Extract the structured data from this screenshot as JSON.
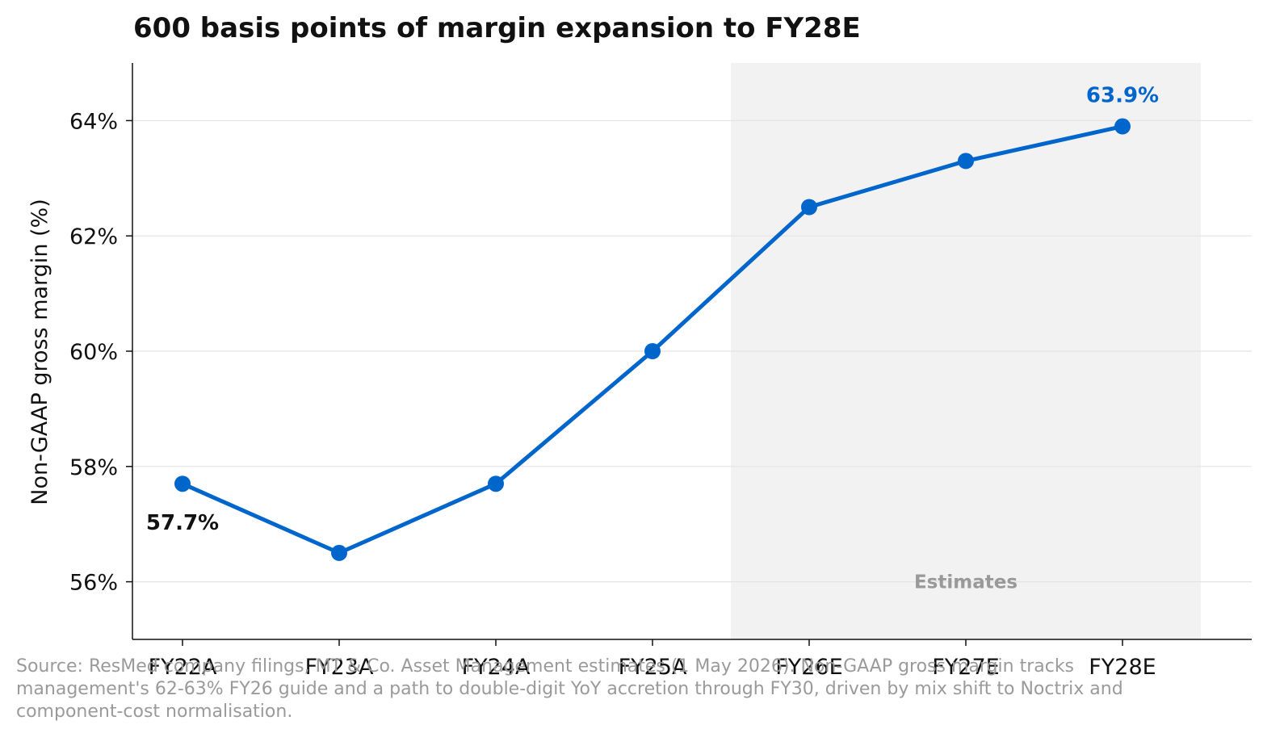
{
  "chart_data": {
    "type": "line",
    "title": "600 basis points of margin expansion to FY28E",
    "xlabel": "",
    "ylabel": "Non-GAAP gross margin (%)",
    "categories": [
      "FY22A",
      "FY23A",
      "FY24A",
      "FY25A",
      "FY26E",
      "FY27E",
      "FY28E"
    ],
    "series": [
      {
        "values": [
          57.7,
          56.5,
          57.7,
          60.0,
          62.5,
          63.3,
          63.9
        ]
      }
    ],
    "ylim": [
      55,
      65
    ],
    "yticks": [
      56,
      58,
      60,
      62,
      64
    ],
    "ytick_labels": [
      "56%",
      "58%",
      "60%",
      "62%",
      "64%"
    ],
    "grid": "horizontal",
    "line_color": "#0066cc",
    "shaded_region": {
      "from": "FY26E",
      "to": "FY28E",
      "label": "Estimates",
      "color": "#f2f2f2"
    },
    "annotations": [
      {
        "category": "FY22A",
        "text": "57.7%",
        "color": "#111111"
      },
      {
        "category": "FY28E",
        "text": "63.9%",
        "color": "#0066cc"
      }
    ]
  },
  "footnote": "Source: ResMed company filings, MT & Co. Asset Management estimates (1 May 2026). Non-GAAP gross margin tracks management's 62-63% FY26 guide and a path to double-digit YoY accretion through FY30, driven by mix shift to Noctrix and component-cost normalisation."
}
